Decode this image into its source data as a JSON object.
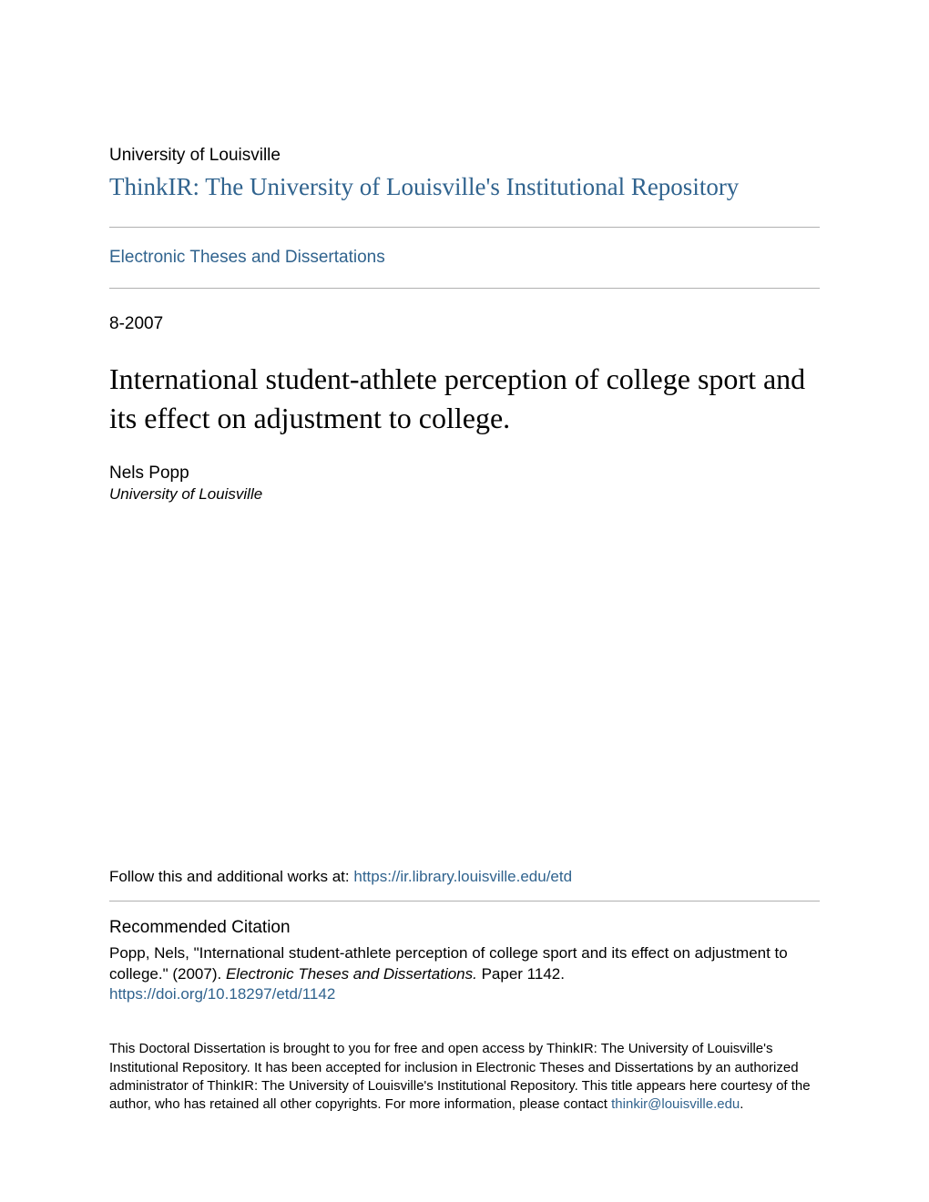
{
  "header": {
    "institution": "University of Louisville",
    "repository_title": "ThinkIR: The University of Louisville's Institutional Repository",
    "collection_link": "Electronic Theses and Dissertations"
  },
  "meta": {
    "date": "8-2007",
    "title": "International student-athlete perception of college sport and its effect on adjustment to college.",
    "author": "Nels Popp",
    "affiliation": "University of Louisville"
  },
  "follow": {
    "prefix": "Follow this and additional works at: ",
    "link_text": "https://ir.library.louisville.edu/etd"
  },
  "recommended": {
    "heading": "Recommended Citation",
    "citation_part1": "Popp, Nels, \"International student-athlete perception of college sport and its effect on adjustment to college.\" (2007). ",
    "citation_italic": "Electronic Theses and Dissertations.",
    "citation_part2": " Paper 1142.",
    "doi_link": "https://doi.org/10.18297/etd/1142"
  },
  "footer": {
    "text_part1": "This Doctoral Dissertation is brought to you for free and open access by ThinkIR: The University of Louisville's Institutional Repository. It has been accepted for inclusion in Electronic Theses and Dissertations by an authorized administrator of ThinkIR: The University of Louisville's Institutional Repository. This title appears here courtesy of the author, who has retained all other copyrights. For more information, please contact ",
    "email": "thinkir@louisville.edu",
    "text_part2": "."
  },
  "colors": {
    "link_color": "#30638e",
    "text_color": "#000000",
    "divider_color": "#b0b0b0",
    "background_color": "#ffffff"
  },
  "typography": {
    "institution_fontsize": 19,
    "repository_title_fontsize": 27,
    "collection_fontsize": 19,
    "date_fontsize": 19,
    "title_fontsize": 32,
    "author_fontsize": 19,
    "affiliation_fontsize": 17,
    "follow_fontsize": 17,
    "rec_heading_fontsize": 19,
    "citation_fontsize": 17,
    "footer_fontsize": 15
  }
}
